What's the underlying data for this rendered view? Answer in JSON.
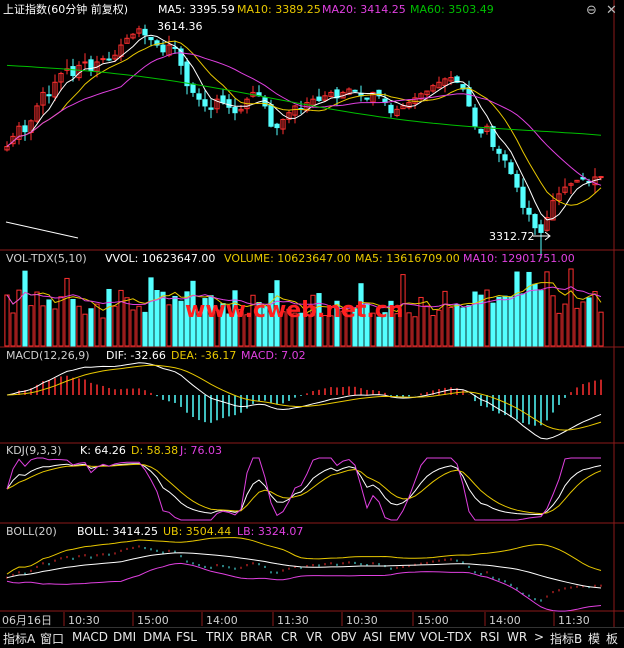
{
  "header": {
    "title": "上证指数(60分钟 前复权)",
    "ma5": "MA5: 3395.59",
    "ma10": "MA10: 3389.25",
    "ma20": "MA20: 3414.25",
    "ma60": "MA60: 3503.49"
  },
  "price_panel": {
    "high_label": "3614.36",
    "low_label": "3312.72"
  },
  "vol_panel": {
    "title": "VOL-TDX(5,10)",
    "vvol": "VVOL: 10623647.00",
    "volume": "VOLUME: 10623647.00",
    "ma5": "MA5: 13616709.00",
    "ma10": "MA10: 12901751.00",
    "watermark": "www.cweb.net.cn"
  },
  "macd_panel": {
    "title": "MACD(12,26,9)",
    "dif": "DIF: -32.66",
    "dea": "DEA: -36.17",
    "macd": "MACD: 7.02"
  },
  "kdj_panel": {
    "title": "KDJ(9,3,3)",
    "k": "K: 64.26",
    "d": "D: 58.38",
    "j": "J: 76.03"
  },
  "boll_panel": {
    "title": "BOLL(20)",
    "boll": "BOLL: 3414.25",
    "ub": "UB: 3504.44",
    "lb": "LB: 3324.07"
  },
  "time_axis": [
    "06月16日",
    "10:30",
    "15:00",
    "14:00",
    "11:30",
    "10:30",
    "15:00",
    "14:00",
    "11:30"
  ],
  "tabs": [
    "指标A",
    "窗口",
    "MACD",
    "DMI",
    "DMA",
    "FSL",
    "TRIX",
    "BRAR",
    "CR",
    "VR",
    "OBV",
    "ASI",
    "EMV",
    "VOL-TDX",
    "RSI",
    "WR",
    ">",
    "指标B",
    "模",
    "板"
  ],
  "window_controls": [
    "⊖",
    "✕"
  ],
  "colors": {
    "up": "#ff3030",
    "down": "#54ffff",
    "ma5": "#ffffff",
    "ma10": "#e8c800",
    "ma20": "#e040e0",
    "ma60": "#00c000",
    "grid": "#8b1a1a",
    "text": "#d0d0d0",
    "watermark": "#ff2020"
  },
  "chart_data": {
    "type": "candlestick",
    "title": "上证指数(60分钟 前复权)",
    "xlabel": "",
    "ylabel": "",
    "n_bars": 100,
    "price_range_visible": [
      3312.72,
      3614.36
    ],
    "last_values": {
      "MA5": 3395.59,
      "MA10": 3389.25,
      "MA20": 3414.25,
      "MA60": 3503.49,
      "VVOL": 10623647,
      "VOLUME": 10623647,
      "VOL_MA5": 13616709,
      "VOL_MA10": 12901751,
      "DIF": -32.66,
      "DEA": -36.17,
      "MACD": 7.02,
      "K": 64.26,
      "D": 58.38,
      "J": 76.03,
      "BOLL": 3414.25,
      "UB": 3504.44,
      "LB": 3324.07
    },
    "close_path": [
      3440,
      3455,
      3470,
      3462,
      3478,
      3500,
      3520,
      3515,
      3535,
      3548,
      3555,
      3545,
      3560,
      3565,
      3552,
      3565,
      3570,
      3568,
      3575,
      3590,
      3600,
      3606,
      3614,
      3605,
      3598,
      3590,
      3580,
      3590,
      3585,
      3560,
      3530,
      3520,
      3510,
      3500,
      3495,
      3510,
      3505,
      3498,
      3490,
      3495,
      3510,
      3520,
      3515,
      3500,
      3470,
      3468,
      3480,
      3490,
      3500,
      3495,
      3505,
      3510,
      3508,
      3515,
      3520,
      3512,
      3520,
      3525,
      3522,
      3515,
      3510,
      3520,
      3515,
      3505,
      3490,
      3495,
      3500,
      3505,
      3512,
      3518,
      3522,
      3530,
      3535,
      3540,
      3542,
      3535,
      3525,
      3500,
      3470,
      3460,
      3470,
      3440,
      3430,
      3420,
      3400,
      3380,
      3350,
      3340,
      3320,
      3313,
      3335,
      3360,
      3370,
      3380,
      3385,
      3390,
      3392,
      3388,
      3395,
      3395.59
    ]
  }
}
